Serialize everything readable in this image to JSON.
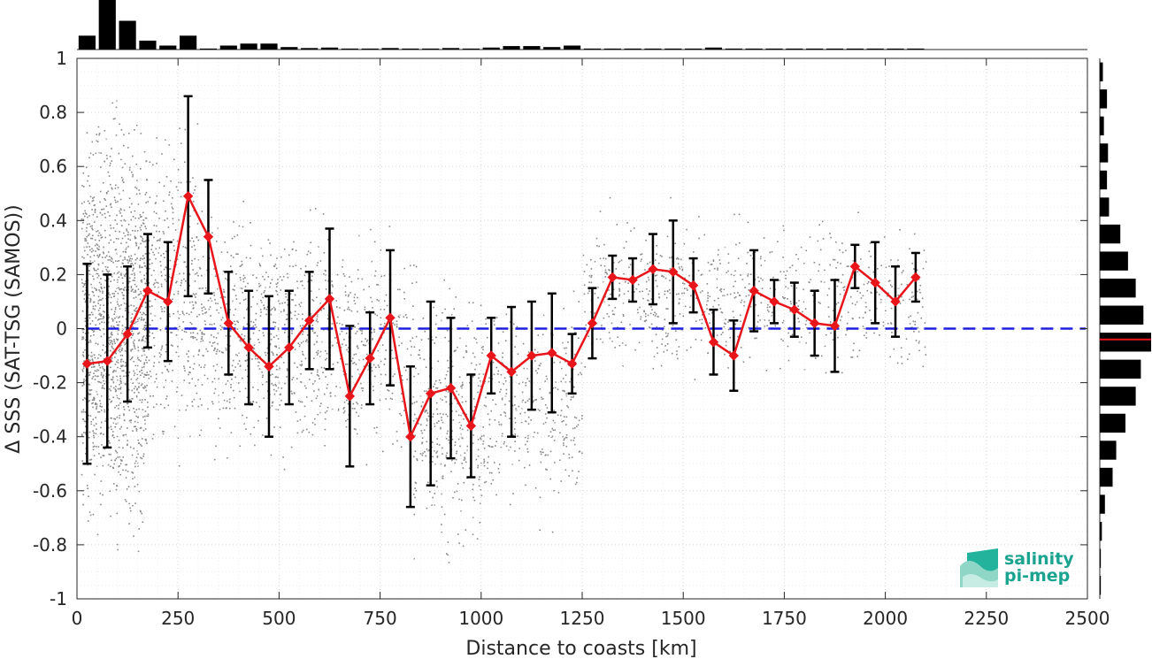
{
  "chart_data": {
    "type": "line",
    "title": "",
    "xlabel": "Distance to coasts [km]",
    "ylabel": "Δ SSS (SAT-TSG (SAMOS))",
    "xlim": [
      0,
      2500
    ],
    "ylim": [
      -1,
      1
    ],
    "xticks": [
      0,
      250,
      500,
      750,
      1000,
      1250,
      1500,
      1750,
      2000,
      2250,
      2500
    ],
    "yticks": [
      -1,
      -0.8,
      -0.6,
      -0.4,
      -0.2,
      0,
      0.2,
      0.4,
      0.6,
      0.8,
      1
    ],
    "ytick_labels": [
      "-1",
      "-0.8",
      "-0.6",
      "-0.4",
      "-0.2",
      "0",
      "0.2",
      "0.4",
      "0.6",
      "0.8",
      "1"
    ],
    "grid": true,
    "reference_line": {
      "y": 0,
      "style": "dashed",
      "color": "#1f1fe0"
    },
    "series": [
      {
        "type": "line-errorbar",
        "color": "#e8151b",
        "marker": "diamond",
        "x": [
          25,
          75,
          125,
          175,
          225,
          275,
          325,
          375,
          425,
          475,
          525,
          575,
          625,
          675,
          725,
          775,
          825,
          875,
          925,
          975,
          1025,
          1075,
          1125,
          1175,
          1225,
          1275,
          1325,
          1375,
          1425,
          1475,
          1525,
          1575,
          1625,
          1675,
          1725,
          1775,
          1825,
          1875,
          1925,
          1975,
          2025,
          2075
        ],
        "y": [
          -0.13,
          -0.12,
          -0.02,
          0.14,
          0.1,
          0.49,
          0.34,
          0.02,
          -0.07,
          -0.14,
          -0.07,
          0.03,
          0.11,
          -0.25,
          -0.11,
          0.04,
          -0.4,
          -0.24,
          -0.22,
          -0.36,
          -0.1,
          -0.16,
          -0.1,
          -0.09,
          -0.13,
          0.02,
          0.19,
          0.18,
          0.22,
          0.21,
          0.16,
          -0.05,
          -0.1,
          0.14,
          0.1,
          0.07,
          0.02,
          0.01,
          0.23,
          0.17,
          0.1,
          0.19
        ],
        "err": [
          0.37,
          0.32,
          0.25,
          0.21,
          0.22,
          0.37,
          0.21,
          0.19,
          0.21,
          0.26,
          0.21,
          0.18,
          0.26,
          0.26,
          0.17,
          0.25,
          0.26,
          0.34,
          0.26,
          0.19,
          0.14,
          0.24,
          0.2,
          0.22,
          0.11,
          0.13,
          0.08,
          0.08,
          0.13,
          0.19,
          0.1,
          0.12,
          0.13,
          0.15,
          0.08,
          0.1,
          0.12,
          0.17,
          0.08,
          0.15,
          0.13,
          0.09
        ]
      }
    ],
    "scatter_density": {
      "color": "#888888",
      "bins": [
        {
          "x": [
            10,
            175
          ],
          "y": [
            -0.95,
            0.97
          ],
          "n": 1400
        },
        {
          "x": [
            175,
            300
          ],
          "y": [
            -0.6,
            0.9
          ],
          "n": 350
        },
        {
          "x": [
            300,
            620
          ],
          "y": [
            -0.6,
            0.55
          ],
          "n": 700
        },
        {
          "x": [
            620,
            830
          ],
          "y": [
            -0.6,
            0.45
          ],
          "n": 300
        },
        {
          "x": [
            830,
            1000
          ],
          "y": [
            -0.95,
            0.32
          ],
          "n": 350
        },
        {
          "x": [
            1000,
            1250
          ],
          "y": [
            -0.78,
            0.2
          ],
          "n": 350
        },
        {
          "x": [
            1250,
            1700
          ],
          "y": [
            -0.25,
            0.5
          ],
          "n": 450
        },
        {
          "x": [
            1700,
            2100
          ],
          "y": [
            -0.25,
            0.5
          ],
          "n": 300
        }
      ]
    },
    "top_histogram": {
      "bins": [
        25,
        75,
        125,
        175,
        225,
        275,
        325,
        375,
        425,
        475,
        525,
        575,
        625,
        675,
        725,
        775,
        825,
        875,
        925,
        975,
        1025,
        1075,
        1125,
        1175,
        1225,
        1275,
        1325,
        1375,
        1425,
        1475,
        1525,
        1575,
        1625,
        1675,
        1725,
        1775,
        1825,
        1875,
        1925,
        1975,
        2025,
        2075
      ],
      "counts": [
        0.28,
        1.0,
        0.58,
        0.18,
        0.08,
        0.28,
        0.02,
        0.08,
        0.12,
        0.12,
        0.05,
        0.03,
        0.04,
        0.02,
        0.02,
        0.03,
        0.02,
        0.02,
        0.03,
        0.02,
        0.04,
        0.07,
        0.07,
        0.05,
        0.08,
        0.02,
        0.02,
        0.02,
        0.02,
        0.02,
        0.02,
        0.04,
        0.02,
        0.02,
        0.02,
        0.02,
        0.02,
        0.02,
        0.02,
        0.02,
        0.02,
        0.02
      ]
    },
    "right_histogram": {
      "bins": [
        -0.95,
        -0.85,
        -0.75,
        -0.65,
        -0.55,
        -0.45,
        -0.35,
        -0.25,
        -0.15,
        -0.05,
        0.05,
        0.15,
        0.25,
        0.35,
        0.45,
        0.55,
        0.65,
        0.75,
        0.85,
        0.95
      ],
      "counts": [
        0.02,
        0.02,
        0.04,
        0.1,
        0.25,
        0.32,
        0.5,
        0.7,
        0.8,
        1.0,
        0.85,
        0.7,
        0.55,
        0.4,
        0.18,
        0.14,
        0.16,
        0.08,
        0.14,
        0.06
      ],
      "mean_line": {
        "y": -0.04,
        "color": "#e8151b"
      }
    }
  },
  "logo": {
    "line1": "salinity",
    "line2": "pi-mep"
  }
}
